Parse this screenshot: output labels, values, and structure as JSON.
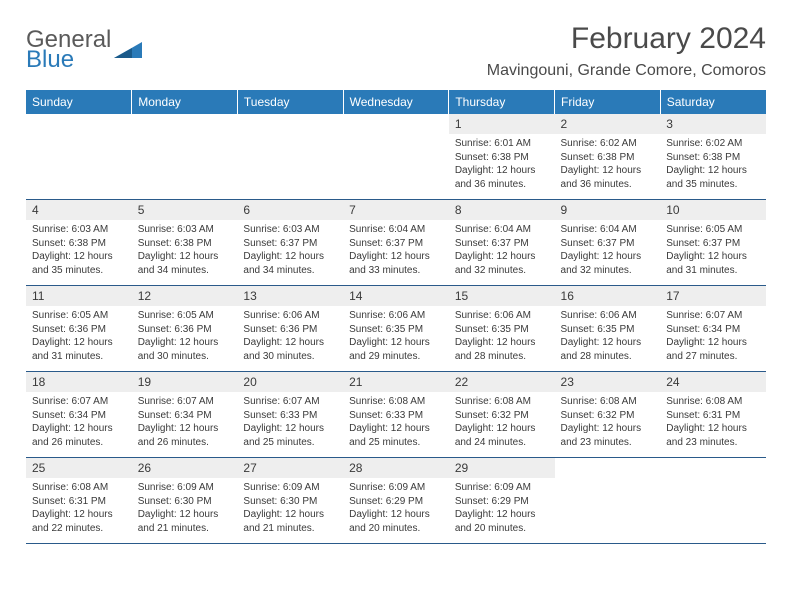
{
  "logo": {
    "part1": "General",
    "part2": "Blue"
  },
  "title": "February 2024",
  "location": "Mavingouni, Grande Comore, Comoros",
  "colors": {
    "header_bg": "#2a7ab8",
    "header_text": "#ffffff",
    "daynum_bg": "#eeeeee",
    "border": "#2a5a8a",
    "text": "#3a3a3a",
    "logo_gray": "#5a5a5a",
    "logo_blue": "#2a7ab8"
  },
  "day_headers": [
    "Sunday",
    "Monday",
    "Tuesday",
    "Wednesday",
    "Thursday",
    "Friday",
    "Saturday"
  ],
  "weeks": [
    {
      "nums": [
        "",
        "",
        "",
        "",
        "1",
        "2",
        "3"
      ],
      "details": [
        "",
        "",
        "",
        "",
        "Sunrise: 6:01 AM\nSunset: 6:38 PM\nDaylight: 12 hours and 36 minutes.",
        "Sunrise: 6:02 AM\nSunset: 6:38 PM\nDaylight: 12 hours and 36 minutes.",
        "Sunrise: 6:02 AM\nSunset: 6:38 PM\nDaylight: 12 hours and 35 minutes."
      ]
    },
    {
      "nums": [
        "4",
        "5",
        "6",
        "7",
        "8",
        "9",
        "10"
      ],
      "details": [
        "Sunrise: 6:03 AM\nSunset: 6:38 PM\nDaylight: 12 hours and 35 minutes.",
        "Sunrise: 6:03 AM\nSunset: 6:38 PM\nDaylight: 12 hours and 34 minutes.",
        "Sunrise: 6:03 AM\nSunset: 6:37 PM\nDaylight: 12 hours and 34 minutes.",
        "Sunrise: 6:04 AM\nSunset: 6:37 PM\nDaylight: 12 hours and 33 minutes.",
        "Sunrise: 6:04 AM\nSunset: 6:37 PM\nDaylight: 12 hours and 32 minutes.",
        "Sunrise: 6:04 AM\nSunset: 6:37 PM\nDaylight: 12 hours and 32 minutes.",
        "Sunrise: 6:05 AM\nSunset: 6:37 PM\nDaylight: 12 hours and 31 minutes."
      ]
    },
    {
      "nums": [
        "11",
        "12",
        "13",
        "14",
        "15",
        "16",
        "17"
      ],
      "details": [
        "Sunrise: 6:05 AM\nSunset: 6:36 PM\nDaylight: 12 hours and 31 minutes.",
        "Sunrise: 6:05 AM\nSunset: 6:36 PM\nDaylight: 12 hours and 30 minutes.",
        "Sunrise: 6:06 AM\nSunset: 6:36 PM\nDaylight: 12 hours and 30 minutes.",
        "Sunrise: 6:06 AM\nSunset: 6:35 PM\nDaylight: 12 hours and 29 minutes.",
        "Sunrise: 6:06 AM\nSunset: 6:35 PM\nDaylight: 12 hours and 28 minutes.",
        "Sunrise: 6:06 AM\nSunset: 6:35 PM\nDaylight: 12 hours and 28 minutes.",
        "Sunrise: 6:07 AM\nSunset: 6:34 PM\nDaylight: 12 hours and 27 minutes."
      ]
    },
    {
      "nums": [
        "18",
        "19",
        "20",
        "21",
        "22",
        "23",
        "24"
      ],
      "details": [
        "Sunrise: 6:07 AM\nSunset: 6:34 PM\nDaylight: 12 hours and 26 minutes.",
        "Sunrise: 6:07 AM\nSunset: 6:34 PM\nDaylight: 12 hours and 26 minutes.",
        "Sunrise: 6:07 AM\nSunset: 6:33 PM\nDaylight: 12 hours and 25 minutes.",
        "Sunrise: 6:08 AM\nSunset: 6:33 PM\nDaylight: 12 hours and 25 minutes.",
        "Sunrise: 6:08 AM\nSunset: 6:32 PM\nDaylight: 12 hours and 24 minutes.",
        "Sunrise: 6:08 AM\nSunset: 6:32 PM\nDaylight: 12 hours and 23 minutes.",
        "Sunrise: 6:08 AM\nSunset: 6:31 PM\nDaylight: 12 hours and 23 minutes."
      ]
    },
    {
      "nums": [
        "25",
        "26",
        "27",
        "28",
        "29",
        "",
        ""
      ],
      "details": [
        "Sunrise: 6:08 AM\nSunset: 6:31 PM\nDaylight: 12 hours and 22 minutes.",
        "Sunrise: 6:09 AM\nSunset: 6:30 PM\nDaylight: 12 hours and 21 minutes.",
        "Sunrise: 6:09 AM\nSunset: 6:30 PM\nDaylight: 12 hours and 21 minutes.",
        "Sunrise: 6:09 AM\nSunset: 6:29 PM\nDaylight: 12 hours and 20 minutes.",
        "Sunrise: 6:09 AM\nSunset: 6:29 PM\nDaylight: 12 hours and 20 minutes.",
        "",
        ""
      ]
    }
  ]
}
